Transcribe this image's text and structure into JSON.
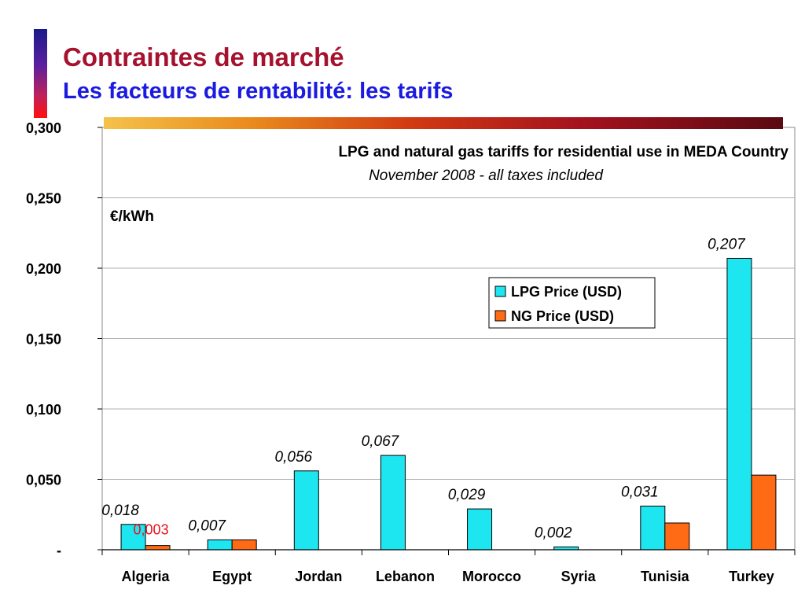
{
  "header": {
    "title": "Contraintes de marché",
    "subtitle": "Les facteurs de rentabilité: les tarifs"
  },
  "chart_data": {
    "type": "bar",
    "title": "LPG and natural gas tariffs for residential use in MEDA Country",
    "subtitle": "November 2008 - all taxes included",
    "unit_label": "€/kWh",
    "categories": [
      "Algeria",
      "Egypt",
      "Jordan",
      "Lebanon",
      "Morocco",
      "Syria",
      "Tunisia",
      "Turkey"
    ],
    "series": [
      {
        "name": "LPG Price (USD)",
        "color": "#1ee6f0",
        "values": [
          0.018,
          0.007,
          0.056,
          0.067,
          0.029,
          0.002,
          0.031,
          0.207
        ],
        "labels": [
          "0,018",
          "0,007",
          "0,056",
          "0,067",
          "0,029",
          "0,002",
          "0,031",
          "0,207"
        ]
      },
      {
        "name": "NG Price (USD)",
        "color": "#ff6a14",
        "values": [
          0.003,
          0.007,
          0,
          0,
          0,
          0,
          0.019,
          0.053
        ],
        "labels": [
          "0,003",
          "",
          "",
          "",
          "",
          "",
          "",
          ""
        ]
      }
    ],
    "ylim": [
      0,
      0.3
    ],
    "yticks": [
      {
        "value": 0,
        "label": "-"
      },
      {
        "value": 0.05,
        "label": "0,050"
      },
      {
        "value": 0.1,
        "label": "0,100"
      },
      {
        "value": 0.15,
        "label": "0,150"
      },
      {
        "value": 0.2,
        "label": "0,200"
      },
      {
        "value": 0.25,
        "label": "0,250"
      },
      {
        "value": 0.3,
        "label": "0,300"
      }
    ],
    "grid": true,
    "legend_position": "center-right"
  }
}
